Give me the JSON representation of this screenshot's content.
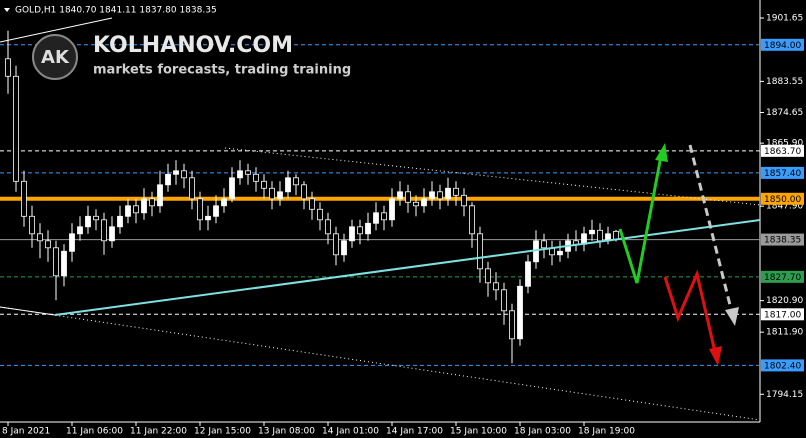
{
  "header": "GOLD,H1  1840.70 1841.11 1837.80 1838.35",
  "logo": {
    "mark": "AK",
    "title": "KOLHANOV.COM",
    "subtitle": "markets forecasts, trading training"
  },
  "chart_data": {
    "type": "candlestick",
    "categories": [
      "8 Jan 2021",
      null,
      null,
      null,
      null,
      null,
      null,
      null,
      "11 Jan 06:00",
      null,
      null,
      null,
      null,
      null,
      null,
      null,
      "11 Jan 22:00",
      null,
      null,
      null,
      null,
      null,
      null,
      null,
      "12 Jan 15:00",
      null,
      null,
      null,
      null,
      null,
      null,
      null,
      "13 Jan 08:00",
      null,
      null,
      null,
      null,
      null,
      null,
      null,
      "14 Jan 01:00",
      null,
      null,
      null,
      null,
      null,
      null,
      null,
      "14 Jan 17:00",
      null,
      null,
      null,
      null,
      null,
      null,
      null,
      "15 Jan 10:00",
      null,
      null,
      null,
      null,
      null,
      null,
      null,
      "18 Jan 03:00",
      null,
      null,
      null,
      null,
      null,
      null,
      null,
      "18 Jan 19:00",
      null,
      null,
      null,
      null
    ],
    "open": [
      1890,
      1885,
      1855,
      1845,
      1840,
      1838,
      1836,
      1828,
      1835,
      1840,
      1842,
      1845,
      1844,
      1838,
      1842,
      1845,
      1848,
      1846,
      1850,
      1848,
      1854,
      1857,
      1858,
      1856,
      1850,
      1844,
      1845,
      1848,
      1850,
      1856,
      1858,
      1857,
      1855,
      1853,
      1850,
      1852,
      1856,
      1854,
      1850,
      1847,
      1844,
      1840,
      1834,
      1838,
      1842,
      1840,
      1843,
      1846,
      1844,
      1850,
      1852,
      1849,
      1848,
      1850,
      1852,
      1850,
      1853,
      1851,
      1848,
      1840,
      1830,
      1826,
      1824,
      1818,
      1810,
      1825,
      1832,
      1838,
      1836,
      1834,
      1835,
      1838,
      1837,
      1840,
      1841,
      1838,
      1840.7
    ],
    "high": [
      1898,
      1888,
      1858,
      1848,
      1843,
      1841,
      1838,
      1837,
      1843,
      1845,
      1848,
      1847,
      1846,
      1845,
      1848,
      1850,
      1850,
      1853,
      1852,
      1858,
      1860,
      1861,
      1860,
      1858,
      1852,
      1848,
      1851,
      1853,
      1859,
      1861,
      1860,
      1859,
      1857,
      1855,
      1855,
      1858,
      1857,
      1855,
      1852,
      1849,
      1846,
      1842,
      1840,
      1844,
      1844,
      1846,
      1849,
      1848,
      1853,
      1855,
      1854,
      1851,
      1853,
      1855,
      1854,
      1856,
      1855,
      1853,
      1849,
      1842,
      1832,
      1829,
      1826,
      1820,
      1827,
      1834,
      1841,
      1840,
      1838,
      1838,
      1840,
      1841,
      1842,
      1844,
      1843,
      1842,
      1841.11
    ],
    "low": [
      1880,
      1852,
      1842,
      1836,
      1833,
      1832,
      1821,
      1825,
      1832,
      1838,
      1840,
      1841,
      1834,
      1836,
      1840,
      1843,
      1843,
      1844,
      1845,
      1846,
      1852,
      1854,
      1853,
      1847,
      1841,
      1841,
      1843,
      1846,
      1849,
      1854,
      1854,
      1852,
      1850,
      1847,
      1848,
      1850,
      1851,
      1847,
      1844,
      1841,
      1837,
      1831,
      1832,
      1836,
      1837,
      1838,
      1841,
      1841,
      1842,
      1848,
      1846,
      1845,
      1846,
      1848,
      1847,
      1848,
      1848,
      1845,
      1836,
      1826,
      1822,
      1821,
      1814,
      1803,
      1808,
      1823,
      1830,
      1833,
      1831,
      1832,
      1833,
      1835,
      1835,
      1838,
      1836,
      1837,
      1837.8
    ],
    "close": [
      1885,
      1855,
      1845,
      1840,
      1838,
      1836,
      1828,
      1835,
      1840,
      1842,
      1845,
      1844,
      1838,
      1842,
      1845,
      1848,
      1846,
      1850,
      1848,
      1854,
      1857,
      1858,
      1856,
      1850,
      1844,
      1845,
      1848,
      1850,
      1856,
      1858,
      1857,
      1855,
      1853,
      1850,
      1852,
      1856,
      1854,
      1850,
      1847,
      1844,
      1840,
      1834,
      1838,
      1842,
      1840,
      1843,
      1846,
      1844,
      1850,
      1852,
      1849,
      1848,
      1850,
      1852,
      1850,
      1853,
      1851,
      1848,
      1840,
      1830,
      1826,
      1824,
      1818,
      1810,
      1825,
      1832,
      1838,
      1836,
      1834,
      1835,
      1838,
      1837,
      1840,
      1841,
      1838,
      1840,
      1838.35
    ],
    "up_color": "#ffffff",
    "down_color": "#000000",
    "wick_color": "#ffffff",
    "ylim": [
      1786.8,
      1906.8
    ],
    "yticks": [
      1901.65,
      1883.55,
      1874.65,
      {
        "value": 1865.9,
        "label": "1865.90"
      },
      {
        "value": 1847.9,
        "label": "1847.90"
      },
      {
        "value": 1820.9,
        "label": "1820.90"
      },
      {
        "value": 1811.9,
        "label": "1811.90"
      },
      1794.15
    ],
    "levels": [
      {
        "value": 1894,
        "label": "1894.00",
        "color": "#3a9cff",
        "style": "dashed"
      },
      {
        "value": 1863.7,
        "label": "1863.70",
        "color": "#ffffff",
        "style": "dashed"
      },
      {
        "value": 1857.4,
        "label": "1857.40",
        "color": "#3a9cff",
        "style": "dashed"
      },
      {
        "value": 1850,
        "label": "1850.00",
        "color": "#ffa500",
        "style": "thick"
      },
      {
        "value": 1838.35,
        "label": "1838.35",
        "color": "#9a9a9a",
        "style": "solid"
      },
      {
        "value": 1827.7,
        "label": "1827.70",
        "color": "#2e9d4e",
        "style": "dashed"
      },
      {
        "value": 1817,
        "label": "1817.00",
        "color": "#ffffff",
        "style": "dashed"
      },
      {
        "value": 1802.4,
        "label": "1802.40",
        "color": "#3a9cff",
        "style": "dashed"
      }
    ]
  }
}
